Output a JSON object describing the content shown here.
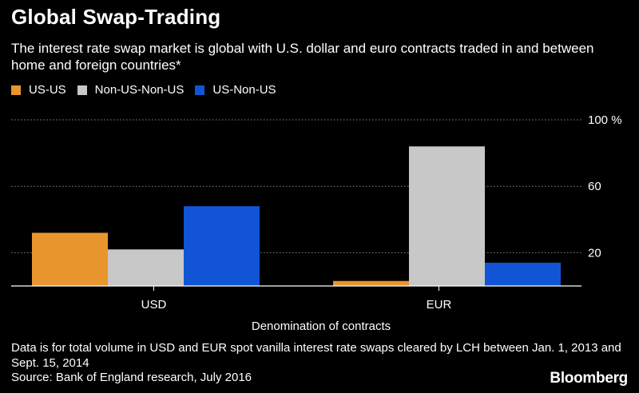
{
  "title": "Global Swap-Trading",
  "subtitle": "The interest rate swap market is global with U.S. dollar and euro contracts traded in and between home and foreign countries*",
  "footnote": "Data is for total volume in USD and EUR spot vanilla interest rate swaps cleared by LCH between Jan. 1, 2013 and Sept. 15, 2014",
  "source": "Source: Bank of England research, July 2016",
  "brand": "Bloomberg",
  "colors": {
    "US-US": "#e8962e",
    "Non-US-Non-US": "#c8c8c8",
    "US-Non-US": "#1155d6"
  },
  "chart_data": {
    "type": "bar",
    "categories": [
      "USD",
      "EUR"
    ],
    "series": [
      {
        "name": "US-US",
        "values": [
          32,
          3
        ]
      },
      {
        "name": "Non-US-Non-US",
        "values": [
          22,
          84
        ]
      },
      {
        "name": "US-Non-US",
        "values": [
          48,
          14
        ]
      }
    ],
    "xlabel": "Denomination of contracts",
    "ylabel": "",
    "ylim": [
      0,
      100
    ],
    "y_ticks": [
      20,
      60,
      100
    ],
    "y_tick_labels": [
      "20",
      "60",
      "100 %"
    ],
    "grid": true,
    "legend": "top-left"
  }
}
